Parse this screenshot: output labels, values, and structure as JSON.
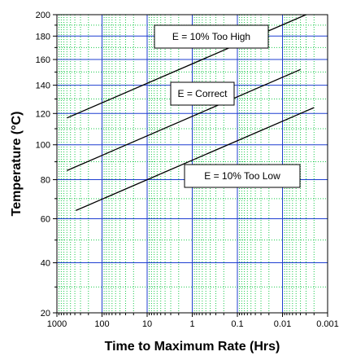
{
  "chart_data": {
    "type": "line",
    "title": "",
    "xlabel": "Time to Maximum Rate (Hrs)",
    "ylabel": "Temperature (°C)",
    "x_scale": "log",
    "x_reversed": true,
    "y_scale": "reciprocal-kelvin",
    "xlim": [
      1000,
      0.001
    ],
    "ylim": [
      20,
      200
    ],
    "x_ticks": [
      {
        "value": 1000,
        "label": "1000"
      },
      {
        "value": 100,
        "label": "100"
      },
      {
        "value": 10,
        "label": "10"
      },
      {
        "value": 1,
        "label": "1"
      },
      {
        "value": 0.1,
        "label": "0.1"
      },
      {
        "value": 0.01,
        "label": "0.01"
      },
      {
        "value": 0.001,
        "label": "0.001"
      }
    ],
    "y_ticks": [
      {
        "value": 20,
        "label": "20"
      },
      {
        "value": 40,
        "label": "40"
      },
      {
        "value": 60,
        "label": "60"
      },
      {
        "value": 80,
        "label": "80"
      },
      {
        "value": 100,
        "label": "100"
      },
      {
        "value": 120,
        "label": "120"
      },
      {
        "value": 140,
        "label": "140"
      },
      {
        "value": 160,
        "label": "160"
      },
      {
        "value": 180,
        "label": "180"
      },
      {
        "value": 200,
        "label": "200"
      }
    ],
    "grid": {
      "major": true,
      "minor": true
    },
    "colors": {
      "major_grid": "#1f3fd1",
      "minor_grid": "#19c94a",
      "line": "#000000",
      "axis": "#000000"
    },
    "series": [
      {
        "annotation": "E = 10% Too High",
        "x": [
          600,
          0.003
        ],
        "y": [
          117,
          200
        ]
      },
      {
        "annotation": "E = Correct",
        "x": [
          600,
          0.004
        ],
        "y": [
          85,
          152
        ]
      },
      {
        "annotation": "E = 10% Too Low",
        "x": [
          380,
          0.002
        ],
        "y": [
          64,
          124
        ]
      }
    ]
  }
}
